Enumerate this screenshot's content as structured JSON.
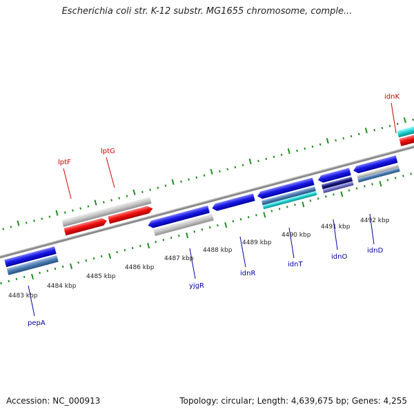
{
  "title": "Escherichia coli str. K-12 substr. MG1655 chromosome, comple...",
  "accession": "Accession: NC_000913",
  "stats": "Topology: circular; Length: 4,639,675 bp; Genes: 4,255",
  "colors": {
    "backbone": "#8a8a8a",
    "tick": "#1e8c1e",
    "gene_red": "#e8141c",
    "gene_blue": "#1414dc",
    "gene_gray": "#b4b4b4",
    "gene_cyan": "#1ec8c8",
    "gene_steel": "#4a7ab0",
    "label_red": "#cc0000",
    "label_blue": "#0000aa"
  },
  "ruler": {
    "unit": "kbp",
    "ticks": [
      {
        "pos": 4483,
        "label": "4483 kbp"
      },
      {
        "pos": 4484,
        "label": "4484 kbp"
      },
      {
        "pos": 4485,
        "label": "4485 kbp"
      },
      {
        "pos": 4486,
        "label": "4486 kbp"
      },
      {
        "pos": 4487,
        "label": "4487 kbp"
      },
      {
        "pos": 4488,
        "label": "4488 kbp"
      },
      {
        "pos": 4489,
        "label": "4489 kbp"
      },
      {
        "pos": 4490,
        "label": "4490 kbp"
      },
      {
        "pos": 4491,
        "label": "4491 kbp"
      },
      {
        "pos": 4492,
        "label": "4492 kbp"
      }
    ]
  },
  "gene_labels": [
    {
      "name": "lptF",
      "color": "red"
    },
    {
      "name": "lptG",
      "color": "red"
    },
    {
      "name": "idnK",
      "color": "red"
    },
    {
      "name": "pepA",
      "color": "blue"
    },
    {
      "name": "yjgR",
      "color": "blue"
    },
    {
      "name": "idnR",
      "color": "blue"
    },
    {
      "name": "idnT",
      "color": "blue"
    },
    {
      "name": "idnO",
      "color": "blue"
    },
    {
      "name": "idnD",
      "color": "blue"
    }
  ]
}
